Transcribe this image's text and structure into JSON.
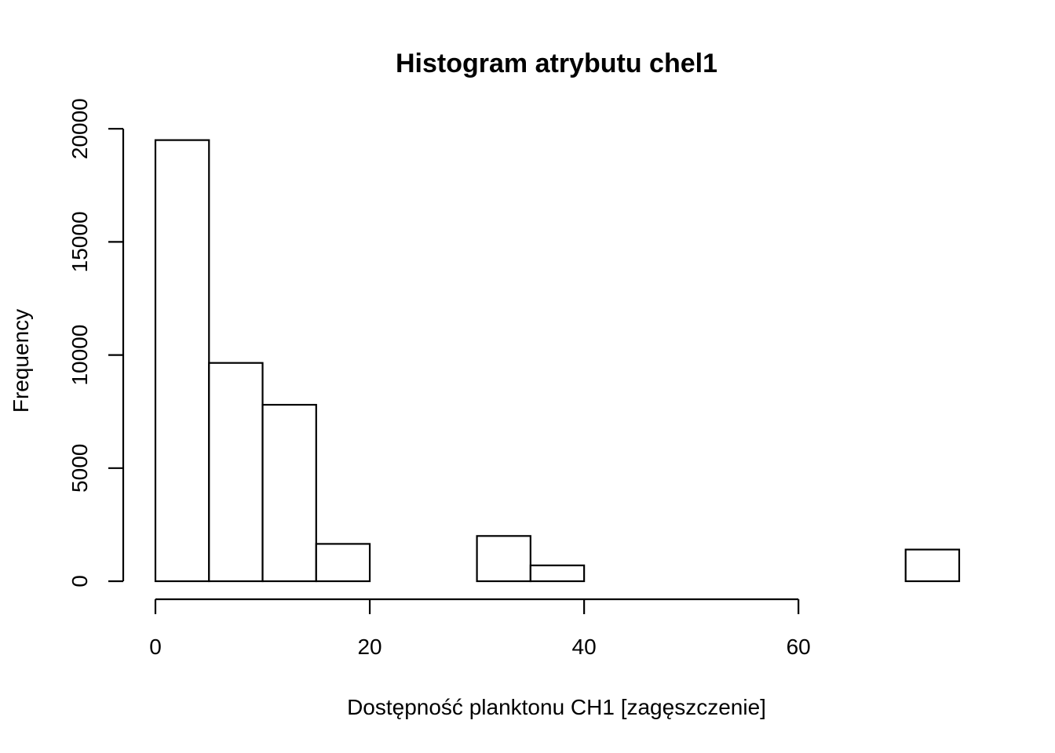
{
  "chart_data": {
    "type": "bar",
    "title": "Histogram atrybutu chel1",
    "xlabel": "Dostępność planktonu CH1 [zagęszczenie]",
    "ylabel": "Frequency",
    "bins": [
      {
        "x0": 0,
        "x1": 5,
        "count": 19500
      },
      {
        "x0": 5,
        "x1": 10,
        "count": 9650
      },
      {
        "x0": 10,
        "x1": 15,
        "count": 7800
      },
      {
        "x0": 15,
        "x1": 20,
        "count": 1650
      },
      {
        "x0": 20,
        "x1": 25,
        "count": 0
      },
      {
        "x0": 25,
        "x1": 30,
        "count": 0
      },
      {
        "x0": 30,
        "x1": 35,
        "count": 2000
      },
      {
        "x0": 35,
        "x1": 40,
        "count": 700
      },
      {
        "x0": 40,
        "x1": 45,
        "count": 0
      },
      {
        "x0": 45,
        "x1": 50,
        "count": 0
      },
      {
        "x0": 50,
        "x1": 55,
        "count": 0
      },
      {
        "x0": 55,
        "x1": 60,
        "count": 0
      },
      {
        "x0": 60,
        "x1": 65,
        "count": 0
      },
      {
        "x0": 65,
        "x1": 70,
        "count": 0
      },
      {
        "x0": 70,
        "x1": 75,
        "count": 1400
      }
    ],
    "xticks": [
      0,
      20,
      40,
      60
    ],
    "yticks": [
      0,
      5000,
      10000,
      15000,
      20000
    ],
    "xlim": [
      0,
      75
    ],
    "ylim": [
      0,
      20000
    ],
    "grid": false
  }
}
